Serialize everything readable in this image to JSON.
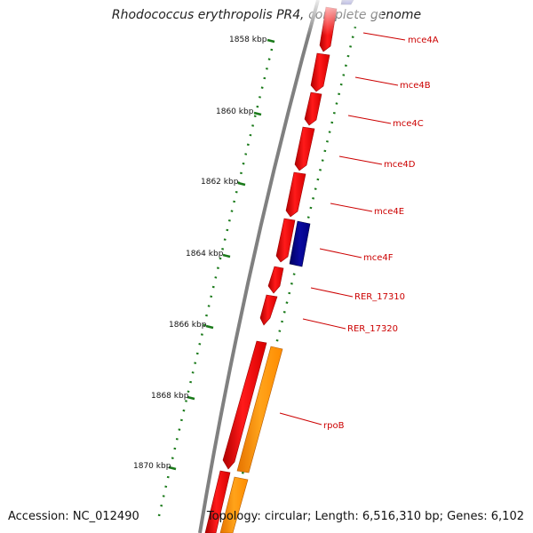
{
  "title": "Rhodococcus erythropolis PR4, complete genome",
  "accession": "Accession: NC_012490",
  "topology": "Topology: circular; Length: 6,516,310 bp; Genes: 6,102",
  "scale_labels": [
    "1858 kbp",
    "1860 kbp",
    "1862 kbp",
    "1864 kbp",
    "1866 kbp",
    "1868 kbp",
    "1870 kbp"
  ],
  "gene_labels": [
    "mce4A",
    "mce4B",
    "mce4C",
    "mce4D",
    "mce4E",
    "mce4F",
    "RER_17310",
    "RER_17320",
    "rpoB"
  ],
  "colors": {
    "forward_gene": "#ff0000",
    "reverse_gene": "#000080",
    "rrna_gene": "#ff9900",
    "label": "#cc0000",
    "ticks": "#1a7a1a",
    "backbone": "#808080"
  }
}
